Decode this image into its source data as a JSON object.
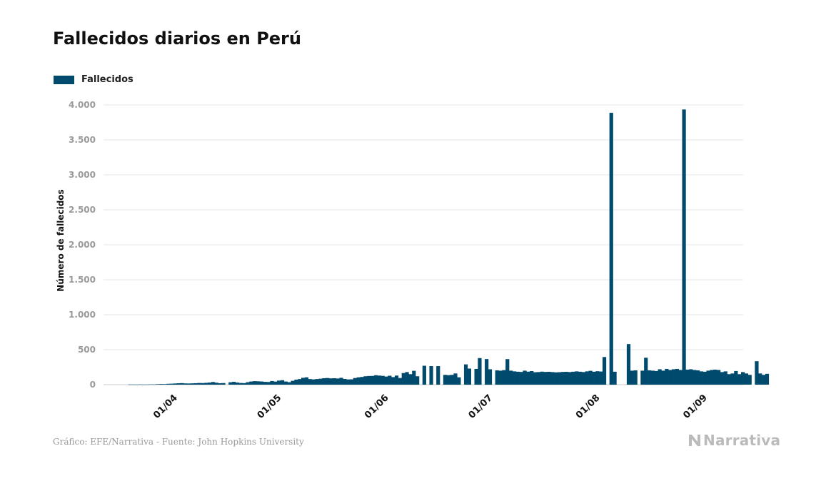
{
  "title": "Fallecidos diarios en Perú",
  "source": "Gráfico: EFE/Narrativa - Fuente: John Hopkins University",
  "logo_text": "Narrativa",
  "colors": {
    "bar": "#004a6e",
    "grid": "#e6e6e6",
    "tick_text": "#999999",
    "axis_label": "#111111"
  },
  "chart_data": {
    "type": "bar",
    "series": [
      {
        "name": "Fallecidos"
      }
    ],
    "ylabel": "Número de fallecidos",
    "ylim": [
      0,
      4000
    ],
    "y_ticks": [
      0,
      500,
      1000,
      1500,
      2000,
      2500,
      3000,
      3500,
      4000
    ],
    "y_tick_labels": [
      "0",
      "500",
      "1.000",
      "1.500",
      "2.000",
      "2.500",
      "3.000",
      "3.500",
      "4.000"
    ],
    "x_ticks": [
      "01/04",
      "01/05",
      "01/06",
      "01/07",
      "01/08",
      "01/09"
    ],
    "legend_position": "top-left",
    "grid": true,
    "start_date": "2020-03-19",
    "values": [
      2,
      2,
      1,
      3,
      1,
      2,
      4,
      3,
      7,
      9,
      8,
      12,
      14,
      17,
      20,
      22,
      18,
      17,
      19,
      21,
      24,
      23,
      26,
      30,
      38,
      28,
      20,
      23,
      0,
      34,
      40,
      30,
      24,
      22,
      35,
      45,
      50,
      48,
      45,
      40,
      38,
      52,
      44,
      58,
      64,
      45,
      35,
      55,
      72,
      80,
      98,
      105,
      80,
      75,
      80,
      85,
      92,
      95,
      90,
      92,
      88,
      98,
      82,
      75,
      76,
      95,
      105,
      110,
      120,
      124,
      125,
      135,
      130,
      126,
      116,
      128,
      108,
      130,
      95,
      166,
      180,
      150,
      198,
      120,
      0,
      270,
      0,
      265,
      0,
      265,
      0,
      140,
      136,
      140,
      160,
      105,
      0,
      290,
      230,
      0,
      225,
      380,
      0,
      366,
      220,
      0,
      205,
      200,
      208,
      365,
      200,
      190,
      185,
      182,
      200,
      186,
      194,
      178,
      180,
      186,
      182,
      184,
      180,
      176,
      178,
      182,
      184,
      180,
      185,
      190,
      185,
      180,
      190,
      198,
      185,
      192,
      188,
      395,
      0,
      3887,
      185,
      0,
      0,
      0,
      580,
      200,
      205,
      0,
      200,
      385,
      205,
      200,
      195,
      220,
      200,
      225,
      210,
      220,
      225,
      210,
      3935,
      215,
      220,
      210,
      205,
      190,
      185,
      200,
      210,
      215,
      210,
      180,
      190,
      150,
      160,
      195,
      150,
      180,
      160,
      140,
      0,
      335,
      160,
      140,
      155
    ]
  }
}
